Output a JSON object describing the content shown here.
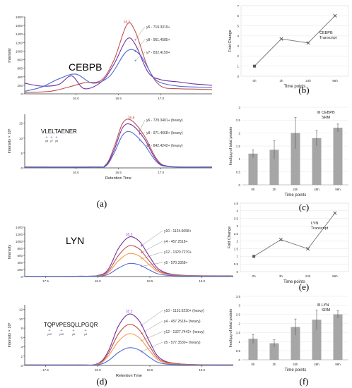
{
  "chart_data": [
    {
      "type": "line",
      "panel": "(a)",
      "title": "CEBPB",
      "xlabel": "",
      "ylabel": "Intensity",
      "xlim": [
        15.4,
        17.6
      ],
      "ylim": [
        0,
        1800
      ],
      "yticks": [
        "0",
        "200",
        "400",
        "600",
        "800",
        "1000",
        "1200",
        "1400",
        "1600",
        "1800"
      ],
      "xticks": [
        "16.0",
        "16.5",
        "17.0"
      ],
      "peak_label": "16.6",
      "annotations": [
        "y6 - 719.3319+",
        "y8 - 961.4585+",
        "y7 - 832.4159+"
      ],
      "series": [
        {
          "name": "y6 - 719.3319+",
          "color": "#c0504d",
          "x": [
            15.4,
            15.7,
            15.9,
            16.1,
            16.3,
            16.45,
            16.6,
            16.7,
            16.85,
            17.0,
            17.2,
            17.4,
            17.6
          ],
          "values": [
            30,
            60,
            150,
            260,
            320,
            800,
            1620,
            1450,
            600,
            180,
            120,
            110,
            100
          ]
        },
        {
          "name": "y8 - 961.4585+",
          "color": "#7030a0",
          "x": [
            15.4,
            15.6,
            15.8,
            15.95,
            16.1,
            16.3,
            16.45,
            16.6,
            16.7,
            16.85,
            17.0,
            17.2,
            17.4,
            17.6
          ],
          "values": [
            250,
            180,
            220,
            420,
            120,
            280,
            700,
            1280,
            1150,
            500,
            330,
            280,
            230,
            200
          ]
        },
        {
          "name": "y7 - 832.4159+",
          "color": "#4f6bd8",
          "x": [
            15.4,
            15.6,
            15.8,
            16.0,
            16.2,
            16.4,
            16.6,
            16.75,
            16.9,
            17.0,
            17.2,
            17.4,
            17.6
          ],
          "values": [
            60,
            160,
            350,
            460,
            250,
            420,
            1000,
            920,
            420,
            260,
            180,
            160,
            140
          ]
        }
      ]
    },
    {
      "type": "line",
      "panel": "(a)",
      "title": "VLELTAENER",
      "xlabel": "Retention Time",
      "ylabel": "Intensity × 10³",
      "xlim": [
        15.4,
        17.6
      ],
      "ylim": [
        0,
        18
      ],
      "yticks": [
        "0",
        "5",
        "10",
        "15"
      ],
      "xticks": [
        "16.0",
        "16.5",
        "17.0"
      ],
      "peak_label": "16.6",
      "fragment_labels": [
        "y8",
        "y7",
        "y6"
      ],
      "annotations": [
        "y6 - 729.3401+ (heavy)",
        "y8 - 971.4668+ (heavy)",
        "y7 - 842.4242+ (heavy)"
      ],
      "series": [
        {
          "name": "y6 - 729.3401+ (heavy)",
          "color": "#c0504d",
          "x": [
            15.4,
            16.2,
            16.35,
            16.45,
            16.55,
            16.65,
            16.8,
            16.95,
            17.1,
            17.6
          ],
          "values": [
            0.3,
            0.3,
            1,
            7,
            15,
            16,
            11,
            3,
            0.5,
            0.3
          ]
        },
        {
          "name": "y8 - 971.4668+ (heavy)",
          "color": "#7030a0",
          "x": [
            15.4,
            16.2,
            16.35,
            16.45,
            16.55,
            16.65,
            16.8,
            16.95,
            17.1,
            17.6
          ],
          "values": [
            0.3,
            0.3,
            0.8,
            6,
            13.5,
            14.5,
            10,
            2.5,
            0.5,
            0.3
          ]
        },
        {
          "name": "y7 - 842.4242+ (heavy)",
          "color": "#4f6bd8",
          "x": [
            15.4,
            16.2,
            16.35,
            16.45,
            16.55,
            16.65,
            16.8,
            16.95,
            17.1,
            17.6
          ],
          "values": [
            0.3,
            0.3,
            0.6,
            5,
            11,
            12,
            8,
            2,
            0.4,
            0.3
          ]
        }
      ]
    },
    {
      "type": "line",
      "panel": "(b)",
      "title": "",
      "legend": "CEBPB Transcript",
      "xlabel": "Time points",
      "ylabel": "Fold Change",
      "categories": [
        "0h",
        "3h",
        "24h",
        "96h"
      ],
      "ylim": [
        0,
        7
      ],
      "yticks": [
        "0",
        "1",
        "2",
        "3",
        "4",
        "5",
        "6",
        "7"
      ],
      "values": [
        1.0,
        3.7,
        3.3,
        6.0
      ]
    },
    {
      "type": "bar",
      "panel": "(c)",
      "title": "",
      "legend": "CEBPB SRM",
      "xlabel": "Time points",
      "ylabel": "fmol/μg of total protein",
      "categories": [
        "0h",
        "3h",
        "24h",
        "48h",
        "96h"
      ],
      "ylim": [
        0,
        3
      ],
      "yticks": [
        "0",
        "0.5",
        "1",
        "1.5",
        "2",
        "2.5",
        "3"
      ],
      "values": [
        1.2,
        1.35,
        2.0,
        1.8,
        2.2
      ],
      "errors": [
        0.15,
        0.35,
        0.6,
        0.3,
        0.15
      ]
    },
    {
      "type": "line",
      "panel": "(d)",
      "title": "LYN",
      "xlabel": "",
      "ylabel": "Intensity",
      "xlim": [
        17.3,
        19.3
      ],
      "ylim": [
        0,
        1400
      ],
      "yticks": [
        "0",
        "200",
        "400",
        "600",
        "800",
        "1000",
        "1200",
        "1400"
      ],
      "xticks": [
        "17.5",
        "18.0",
        "18.5",
        "19.0"
      ],
      "peak_label": "18.3",
      "annotations": [
        "y10 - 1124.6058+",
        "y4 - 457.2518+",
        "y12 - 1320.7270+",
        "y5 - 570.3358+"
      ],
      "series": [
        {
          "name": "y10 - 1124.6058+",
          "color": "#7030a0",
          "x": [
            17.3,
            17.8,
            18.0,
            18.1,
            18.2,
            18.3,
            18.4,
            18.5,
            18.6,
            18.8,
            19.3
          ],
          "values": [
            10,
            10,
            30,
            200,
            800,
            1120,
            1000,
            550,
            180,
            40,
            20
          ]
        },
        {
          "name": "y4 - 457.2518+",
          "color": "#c0504d",
          "x": [
            17.3,
            17.8,
            18.0,
            18.1,
            18.2,
            18.3,
            18.4,
            18.5,
            18.6,
            18.8,
            19.3
          ],
          "values": [
            10,
            10,
            25,
            150,
            600,
            870,
            780,
            420,
            140,
            35,
            20
          ]
        },
        {
          "name": "y12 - 1320.7270+",
          "color": "#f79646",
          "x": [
            17.3,
            17.8,
            18.0,
            18.1,
            18.2,
            18.3,
            18.4,
            18.5,
            18.6,
            18.8,
            19.3
          ],
          "values": [
            10,
            10,
            20,
            110,
            450,
            650,
            580,
            320,
            110,
            30,
            20
          ]
        },
        {
          "name": "y5 - 570.3358+",
          "color": "#4f6bd8",
          "x": [
            17.3,
            17.8,
            18.0,
            18.1,
            18.2,
            18.3,
            18.4,
            18.5,
            18.6,
            18.8,
            19.3
          ],
          "values": [
            10,
            10,
            15,
            60,
            240,
            370,
            330,
            180,
            60,
            20,
            15
          ]
        }
      ]
    },
    {
      "type": "line",
      "panel": "(d)",
      "title": "TQPVPESQLLPGQR",
      "xlabel": "Retention Time",
      "ylabel": "Intensity × 10³",
      "xlim": [
        17.3,
        19.3
      ],
      "ylim": [
        0,
        13
      ],
      "yticks": [
        "0",
        "2",
        "4",
        "6",
        "8",
        "10",
        "12"
      ],
      "xticks": [
        "17.5",
        "18.0",
        "18.5",
        "19.0"
      ],
      "peak_label": "18.3",
      "fragment_labels": [
        "y12",
        "y10",
        "y5",
        "y4"
      ],
      "annotations": [
        "y10 - 1131.6230+ (heavy)",
        "y4 - 457.2518+ (heavy)",
        "y12 - 1327.7442+ (heavy)",
        "y5 - 577.3530+ (heavy)"
      ],
      "series": [
        {
          "name": "y10 - 1131.6230+ (heavy)",
          "color": "#7030a0",
          "x": [
            17.3,
            17.8,
            18.0,
            18.1,
            18.2,
            18.3,
            18.4,
            18.5,
            18.6,
            18.8,
            19.3
          ],
          "values": [
            0.1,
            0.1,
            0.4,
            3,
            8.5,
            11,
            9.5,
            5,
            1.5,
            0.3,
            0.1
          ]
        },
        {
          "name": "y4 - 457.2518+ (heavy)",
          "color": "#c0504d",
          "x": [
            17.3,
            17.8,
            18.0,
            18.1,
            18.2,
            18.3,
            18.4,
            18.5,
            18.6,
            18.8,
            19.3
          ],
          "values": [
            0.1,
            0.1,
            0.3,
            2.5,
            6.8,
            8.8,
            7.6,
            4,
            1.2,
            0.3,
            0.1
          ]
        },
        {
          "name": "y12 - 1327.7442+ (heavy)",
          "color": "#f79646",
          "x": [
            17.3,
            17.8,
            18.0,
            18.1,
            18.2,
            18.3,
            18.4,
            18.5,
            18.6,
            18.8,
            19.3
          ],
          "values": [
            0.1,
            0.1,
            0.25,
            2,
            5.2,
            6.8,
            5.9,
            3.1,
            0.9,
            0.2,
            0.1
          ]
        },
        {
          "name": "y5 - 577.3530+ (heavy)",
          "color": "#4f6bd8",
          "x": [
            17.3,
            17.8,
            18.0,
            18.1,
            18.2,
            18.3,
            18.4,
            18.5,
            18.6,
            18.8,
            19.3
          ],
          "values": [
            0.1,
            0.1,
            0.15,
            1,
            2.8,
            3.8,
            3.3,
            1.7,
            0.5,
            0.15,
            0.1
          ]
        }
      ]
    },
    {
      "type": "line",
      "panel": "(e)",
      "title": "",
      "legend": "LYN Transcript",
      "xlabel": "Time points",
      "ylabel": "Fold Change",
      "categories": [
        "0h",
        "3h",
        "24h",
        "96h"
      ],
      "ylim": [
        0,
        4.5
      ],
      "yticks": [
        "0",
        "0.5",
        "1",
        "1.5",
        "2",
        "2.5",
        "3",
        "3.5",
        "4",
        "4.5"
      ],
      "values": [
        1.0,
        2.1,
        1.5,
        3.85
      ]
    },
    {
      "type": "bar",
      "panel": "(f)",
      "title": "",
      "legend": "LYN SRM",
      "xlabel": "Time points",
      "ylabel": "fmol/μg of total protein",
      "categories": [
        "0h",
        "3h",
        "24h",
        "48h",
        "96h"
      ],
      "ylim": [
        0,
        3.5
      ],
      "yticks": [
        "0",
        "0.5",
        "1",
        "1.5",
        "2",
        "2.5",
        "3",
        "3.5"
      ],
      "values": [
        1.15,
        0.9,
        1.8,
        2.2,
        2.5
      ],
      "errors": [
        0.25,
        0.2,
        0.45,
        0.55,
        0.2
      ]
    }
  ]
}
